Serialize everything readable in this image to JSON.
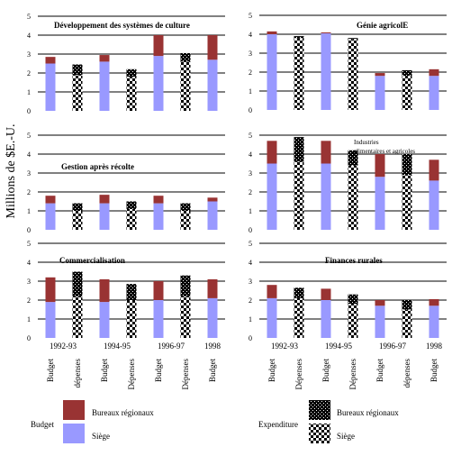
{
  "figure": {
    "ylabel": "Millions de $E.-U.",
    "periods": [
      "1992-93",
      "1994-95",
      "1996-97",
      "1998"
    ],
    "bar_labels_left": [
      "Budget",
      "dépenses",
      "Budget",
      "Dépenses",
      "Budget",
      "Dépenses",
      "Budget"
    ],
    "bar_labels_right": [
      "Budget",
      "Dépenses",
      "Budget",
      "Dépenses",
      "Budget",
      "dépenses",
      "Budget"
    ],
    "legend_left": {
      "title": "Budget",
      "items": [
        "Bureaux régionaux",
        "Siège"
      ]
    },
    "legend_right": {
      "title": "Expenditure",
      "items": [
        "Bureaux régionaux",
        "Siège"
      ]
    },
    "colors": {
      "siege": "#9999ff",
      "bureaux": "#993333",
      "pattern": "#000000"
    }
  },
  "chart_data": [
    {
      "type": "bar",
      "stacked": true,
      "title": "Développement des systèmes de culture",
      "categories": [
        "Budget 1992-93",
        "Dépenses 1992-93",
        "Budget 1994-95",
        "Dépenses 1994-95",
        "Budget 1996-97",
        "Dépenses 1996-97",
        "Budget 1998"
      ],
      "series": [
        {
          "name": "Siège",
          "values": [
            2.5,
            1.9,
            2.6,
            1.8,
            2.9,
            2.6,
            2.7
          ]
        },
        {
          "name": "Bureaux régionaux",
          "values": [
            0.35,
            0.55,
            0.35,
            0.4,
            1.1,
            0.45,
            1.3
          ]
        }
      ],
      "ylim": [
        0,
        5
      ],
      "yticks": [
        0,
        1,
        2,
        3,
        4,
        5
      ]
    },
    {
      "type": "bar",
      "stacked": true,
      "title": "Génie agricolE",
      "categories": [
        "Budget 1992-93",
        "Dépenses 1992-93",
        "Budget 1994-95",
        "Dépenses 1994-95",
        "Budget 1996-97",
        "Dépenses 1996-97",
        "Budget 1998"
      ],
      "series": [
        {
          "name": "Siège",
          "values": [
            4.0,
            3.8,
            4.05,
            3.75,
            1.8,
            1.8,
            1.8
          ]
        },
        {
          "name": "Bureaux régionaux",
          "values": [
            0.15,
            0.1,
            0.05,
            0.05,
            0.15,
            0.3,
            0.35
          ]
        }
      ],
      "ylim": [
        0,
        5
      ],
      "yticks": [
        0,
        1,
        2,
        3,
        4,
        5
      ]
    },
    {
      "type": "bar",
      "stacked": true,
      "title": "Gestion après récolte",
      "categories": [
        "Budget 1992-93",
        "Dépenses 1992-93",
        "Budget 1994-95",
        "Dépenses 1994-95",
        "Budget 1996-97",
        "Dépenses 1996-97",
        "Budget 1998"
      ],
      "series": [
        {
          "name": "Siège",
          "values": [
            1.4,
            1.0,
            1.4,
            1.1,
            1.4,
            1.0,
            1.5
          ]
        },
        {
          "name": "Bureaux régionaux",
          "values": [
            0.4,
            0.4,
            0.45,
            0.4,
            0.4,
            0.4,
            0.2
          ]
        }
      ],
      "ylim": [
        0,
        5
      ],
      "yticks": [
        0,
        1,
        2,
        3,
        4,
        5
      ]
    },
    {
      "type": "bar",
      "stacked": true,
      "title": "",
      "annotation": "Industries alimentaires et agricoles",
      "categories": [
        "Budget 1992-93",
        "Dépenses 1992-93",
        "Budget 1994-95",
        "Dépenses 1994-95",
        "Budget 1996-97",
        "Dépenses 1996-97",
        "Budget 1998"
      ],
      "series": [
        {
          "name": "Siège",
          "values": [
            3.5,
            3.6,
            3.5,
            3.4,
            2.8,
            2.9,
            2.6
          ]
        },
        {
          "name": "Bureaux régionaux",
          "values": [
            1.2,
            1.3,
            1.2,
            0.8,
            1.2,
            1.1,
            1.1
          ]
        }
      ],
      "ylim": [
        0,
        5
      ],
      "yticks": [
        0,
        1,
        2,
        3,
        4,
        5
      ]
    },
    {
      "type": "bar",
      "stacked": true,
      "title": "Commercialisation",
      "categories": [
        "Budget 1992-93",
        "Dépenses 1992-93",
        "Budget 1994-95",
        "Dépenses 1994-95",
        "Budget 1996-97",
        "Dépenses 1996-97",
        "Budget 1998"
      ],
      "series": [
        {
          "name": "Siège",
          "values": [
            1.9,
            2.2,
            1.9,
            2.0,
            2.0,
            2.2,
            2.1
          ]
        },
        {
          "name": "Bureaux régionaux",
          "values": [
            1.3,
            1.3,
            1.2,
            0.85,
            1.0,
            1.1,
            1.0
          ]
        }
      ],
      "ylim": [
        0,
        5
      ],
      "yticks": [
        0,
        1,
        2,
        3,
        4,
        5
      ]
    },
    {
      "type": "bar",
      "stacked": true,
      "title": "Finances rurales",
      "categories": [
        "Budget 1992-93",
        "Dépenses 1992-93",
        "Budget 1994-95",
        "Dépenses 1994-95",
        "Budget 1996-97",
        "Dépenses 1996-97",
        "Budget 1998"
      ],
      "series": [
        {
          "name": "Siège",
          "values": [
            2.1,
            2.1,
            2.0,
            1.8,
            1.7,
            1.5,
            1.7
          ]
        },
        {
          "name": "Bureaux régionaux",
          "values": [
            0.7,
            0.55,
            0.6,
            0.5,
            0.3,
            0.5,
            0.35
          ]
        }
      ],
      "ylim": [
        0,
        5
      ],
      "yticks": [
        0,
        1,
        2,
        3,
        4,
        5
      ]
    }
  ]
}
